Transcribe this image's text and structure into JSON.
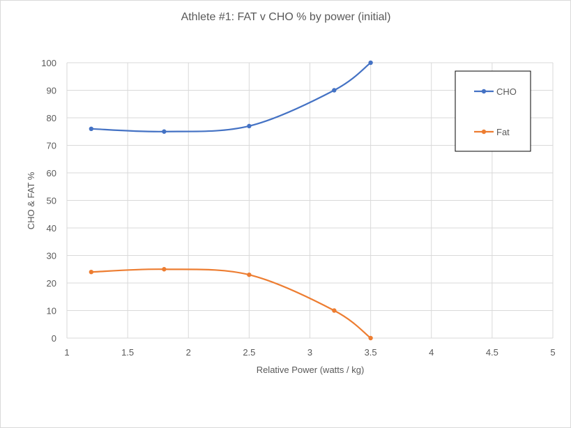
{
  "chart_data": {
    "type": "line",
    "title": "Athlete #1: FAT v CHO % by power (initial)",
    "xlabel": "Relative Power (watts / kg)",
    "ylabel": "CHO & FAT %",
    "xlim": [
      1,
      5
    ],
    "ylim": [
      0,
      100
    ],
    "x_ticks": [
      "1",
      "1.5",
      "2",
      "2.5",
      "3",
      "3.5",
      "4",
      "4.5",
      "5"
    ],
    "y_ticks": [
      "0",
      "10",
      "20",
      "30",
      "40",
      "50",
      "60",
      "70",
      "80",
      "90",
      "100"
    ],
    "grid": true,
    "smooth": true,
    "legend_position": "top-right",
    "series": [
      {
        "name": "CHO",
        "color": "#4472c4",
        "points": [
          [
            1.2,
            76
          ],
          [
            1.8,
            75
          ],
          [
            2.5,
            77
          ],
          [
            3.2,
            90
          ],
          [
            3.5,
            100
          ]
        ]
      },
      {
        "name": "Fat",
        "color": "#ed7d31",
        "points": [
          [
            1.2,
            24
          ],
          [
            1.8,
            25
          ],
          [
            2.5,
            23
          ],
          [
            3.2,
            10
          ],
          [
            3.5,
            0
          ]
        ]
      }
    ]
  }
}
